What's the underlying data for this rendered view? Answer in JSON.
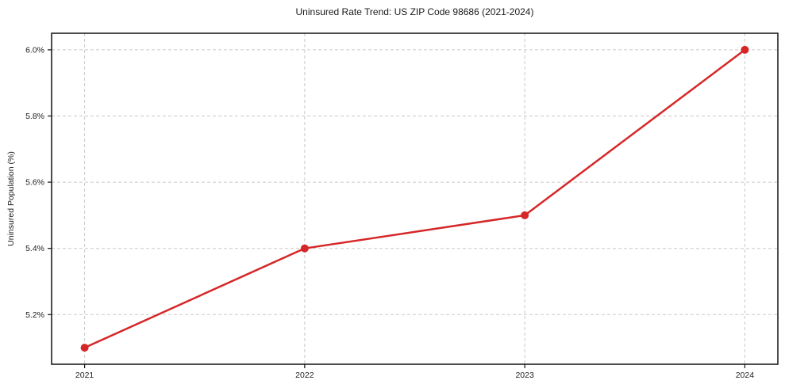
{
  "chart_data": {
    "type": "line",
    "title": "Uninsured Rate Trend: US ZIP Code 98686 (2021-2024)",
    "xlabel": "",
    "ylabel": "Uninsured Population (%)",
    "x": [
      2021,
      2022,
      2023,
      2024
    ],
    "x_tick_labels": [
      "2021",
      "2022",
      "2023",
      "2024"
    ],
    "values": [
      5.1,
      5.4,
      5.5,
      6.0
    ],
    "unit": "%",
    "yticks": [
      5.2,
      5.4,
      5.6,
      5.8,
      6.0
    ],
    "ytick_labels": [
      "5.2%",
      "5.4%",
      "5.6%",
      "5.8%",
      "6.0%"
    ],
    "xlim": [
      2020.85,
      2024.15
    ],
    "ylim": [
      5.05,
      6.05
    ],
    "grid": true,
    "grid_style": "dashed",
    "legend": "none",
    "style": {
      "line_color": "#d62728",
      "marker_color": "#d62728",
      "line_width": 2.5,
      "marker_radius": 5,
      "grid_color": "#c9c9c9",
      "spine_color": "#111111",
      "tick_text_color": "#222222",
      "text_color": "#1a1a1a",
      "background": "#ffffff"
    }
  }
}
